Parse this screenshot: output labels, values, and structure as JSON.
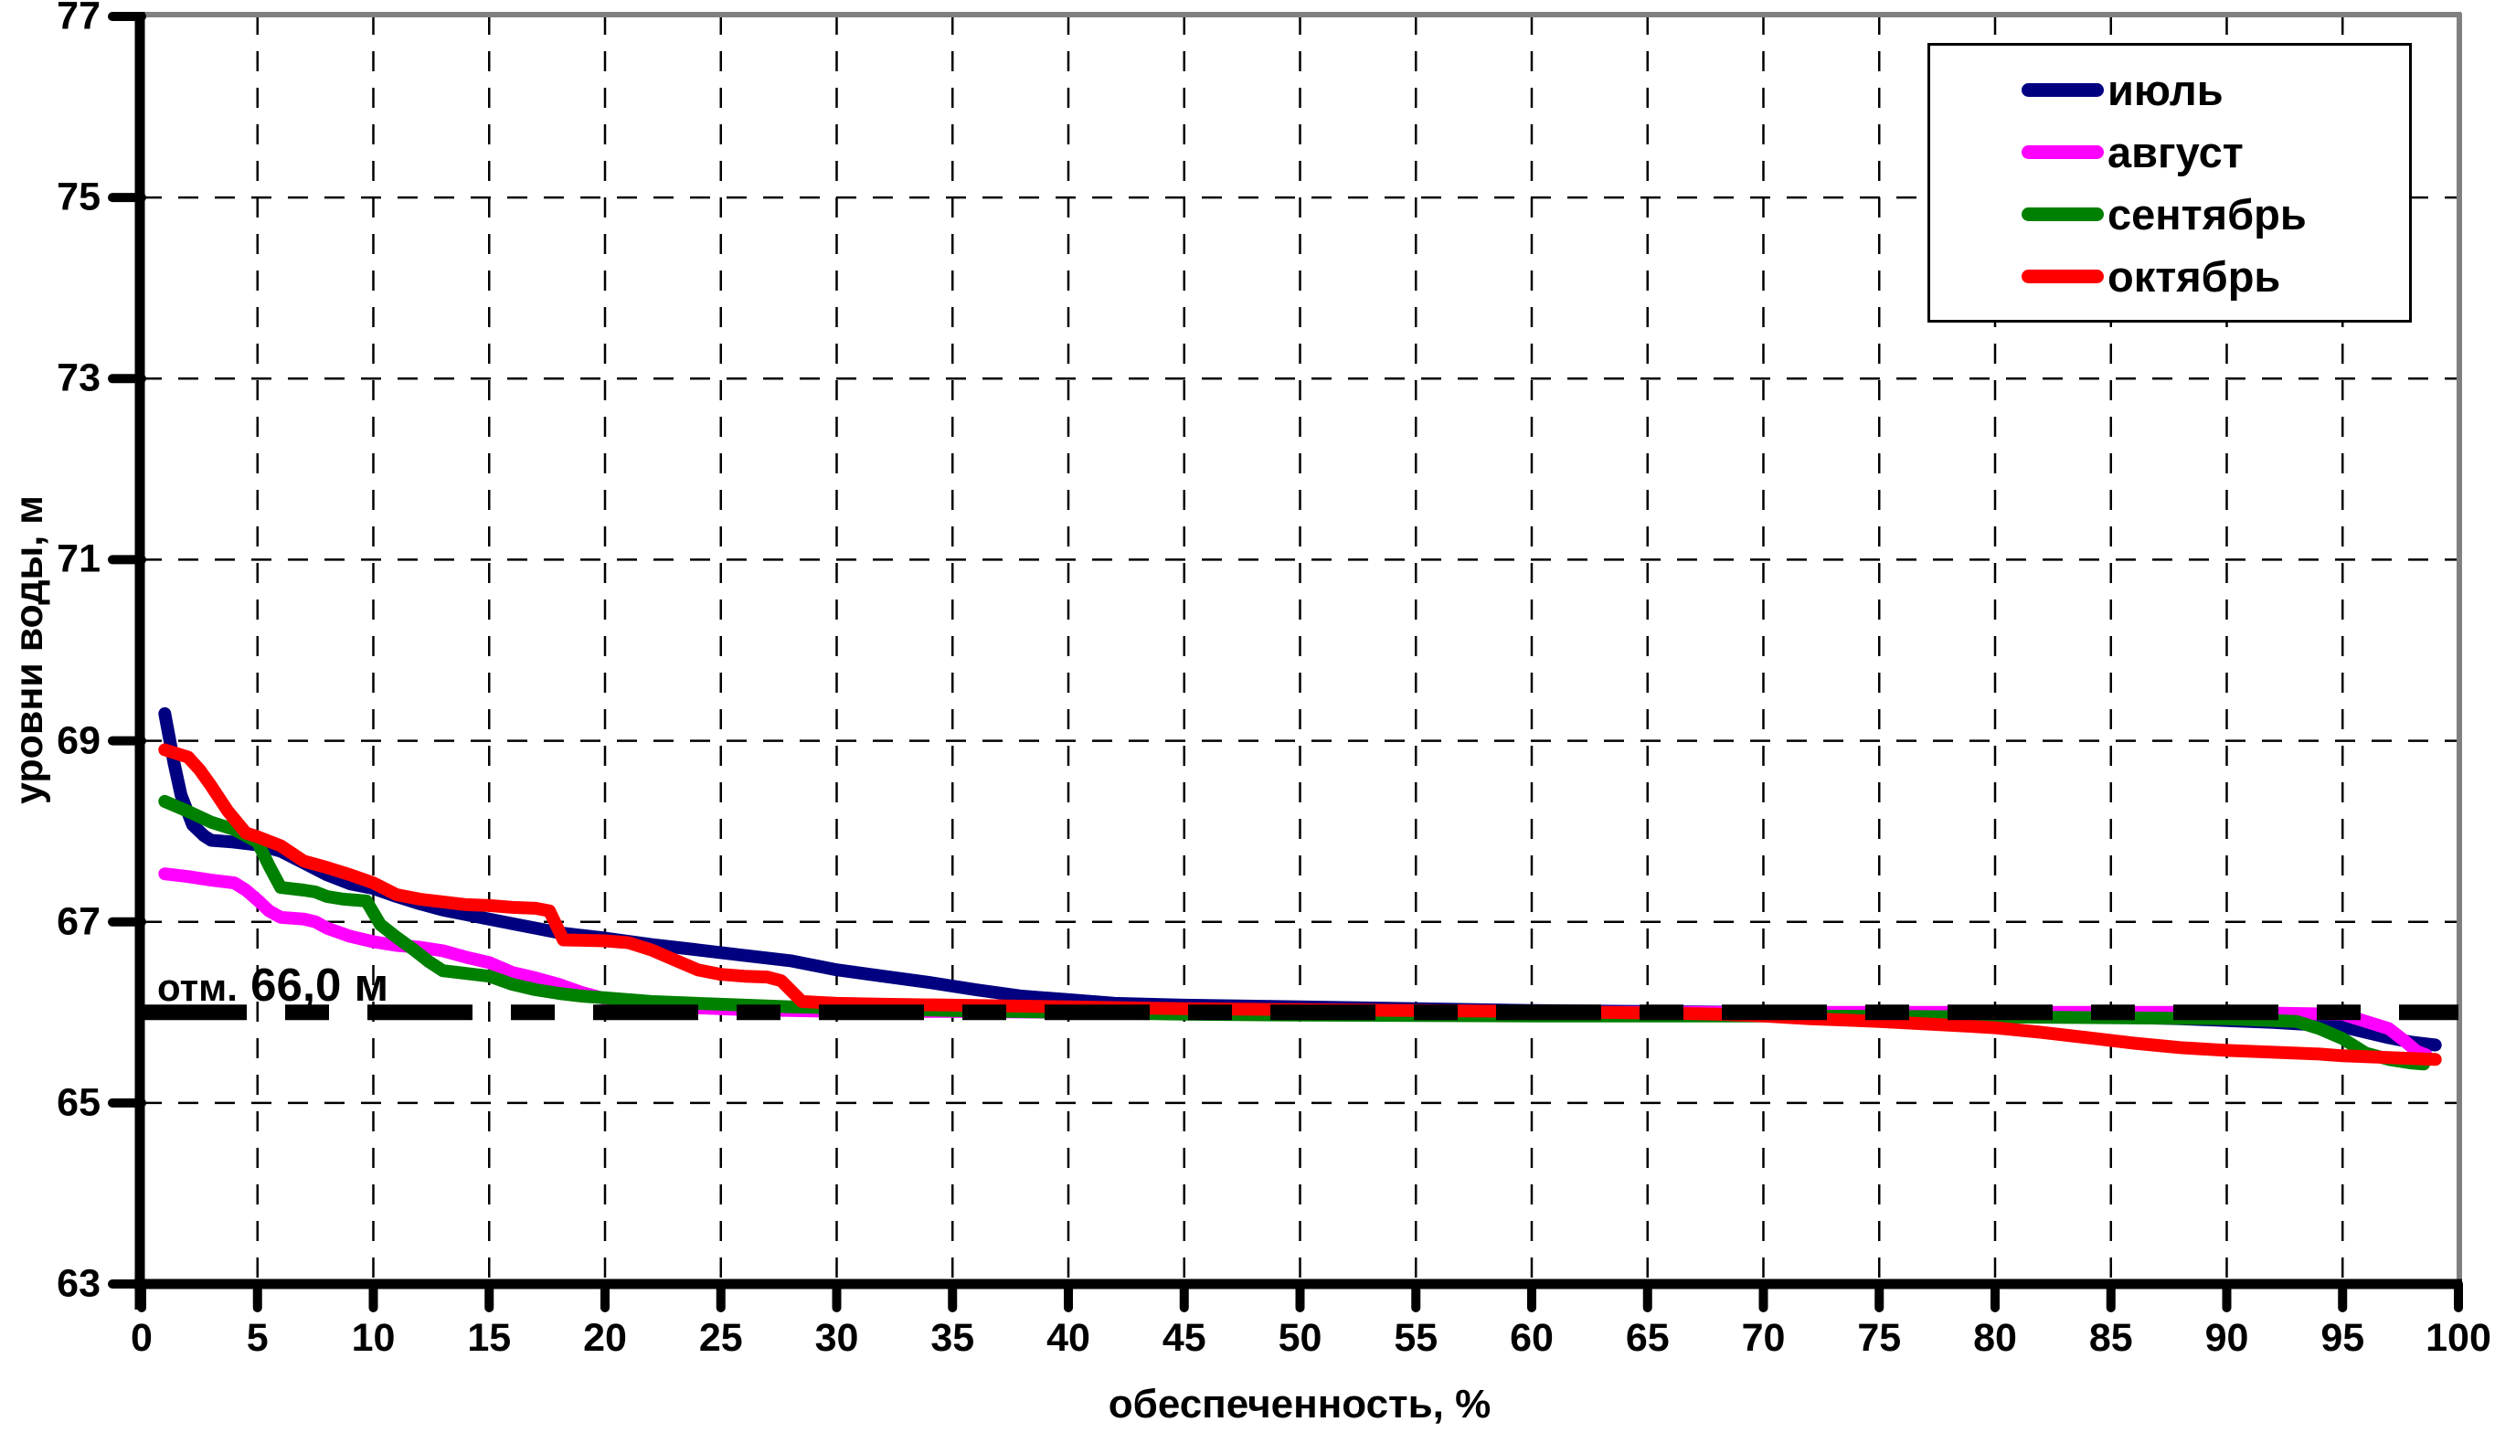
{
  "chart_data": {
    "type": "line",
    "title": "",
    "xlabel": "обеспеченность, %",
    "ylabel": "уровни воды, м",
    "xlim": [
      0,
      100
    ],
    "ylim": [
      63,
      77
    ],
    "x_tick_values": [
      0,
      5,
      10,
      15,
      20,
      25,
      30,
      35,
      40,
      45,
      50,
      55,
      60,
      65,
      70,
      75,
      80,
      85,
      90,
      95,
      100
    ],
    "y_tick_values": [
      77,
      75,
      73,
      71,
      69,
      67,
      65,
      63
    ],
    "x_gridlines": [
      5,
      10,
      15,
      20,
      25,
      30,
      35,
      40,
      45,
      50,
      55,
      60,
      65,
      70,
      75,
      80,
      85,
      90,
      95
    ],
    "y_gridlines": [
      75,
      73,
      71,
      69,
      67,
      65
    ],
    "grid_style": "dashed",
    "legend_position": "top-right",
    "series": [
      {
        "name": "июль",
        "color": "#000080",
        "points": [
          [
            1,
            69.3
          ],
          [
            1.4,
            68.75
          ],
          [
            1.7,
            68.4
          ],
          [
            2.2,
            68.07
          ],
          [
            2.7,
            67.95
          ],
          [
            3,
            67.9
          ],
          [
            4,
            67.88
          ],
          [
            5,
            67.85
          ],
          [
            6,
            67.78
          ],
          [
            7,
            67.65
          ],
          [
            8,
            67.52
          ],
          [
            9,
            67.42
          ],
          [
            10,
            67.37
          ],
          [
            11,
            67.28
          ],
          [
            12,
            67.2
          ],
          [
            13,
            67.13
          ],
          [
            14,
            67.08
          ],
          [
            15,
            67.03
          ],
          [
            16,
            66.98
          ],
          [
            17,
            66.93
          ],
          [
            18,
            66.88
          ],
          [
            19,
            66.85
          ],
          [
            20,
            66.82
          ],
          [
            22,
            66.75
          ],
          [
            24,
            66.69
          ],
          [
            26,
            66.63
          ],
          [
            28,
            66.57
          ],
          [
            30,
            66.47
          ],
          [
            32,
            66.4
          ],
          [
            34,
            66.33
          ],
          [
            36,
            66.25
          ],
          [
            38,
            66.18
          ],
          [
            40,
            66.14
          ],
          [
            42,
            66.1
          ],
          [
            45,
            66.08
          ],
          [
            50,
            66.06
          ],
          [
            55,
            66.04
          ],
          [
            60,
            66.02
          ],
          [
            65,
            66.01
          ],
          [
            70,
            66.0
          ],
          [
            75,
            65.99
          ],
          [
            80,
            65.97
          ],
          [
            85,
            65.95
          ],
          [
            88,
            65.93
          ],
          [
            90,
            65.91
          ],
          [
            92,
            65.89
          ],
          [
            94,
            65.86
          ],
          [
            95,
            65.84
          ],
          [
            96,
            65.78
          ],
          [
            97,
            65.72
          ],
          [
            98,
            65.67
          ],
          [
            99,
            65.64
          ]
        ]
      },
      {
        "name": "август",
        "color": "#FF00FF",
        "points": [
          [
            1,
            67.53
          ],
          [
            2,
            67.5
          ],
          [
            3,
            67.46
          ],
          [
            4,
            67.43
          ],
          [
            4.5,
            67.35
          ],
          [
            5,
            67.24
          ],
          [
            5.5,
            67.12
          ],
          [
            6,
            67.05
          ],
          [
            7,
            67.03
          ],
          [
            7.5,
            67.0
          ],
          [
            8,
            66.93
          ],
          [
            9,
            66.84
          ],
          [
            10,
            66.78
          ],
          [
            11,
            66.74
          ],
          [
            12,
            66.72
          ],
          [
            13,
            66.68
          ],
          [
            14,
            66.61
          ],
          [
            15,
            66.55
          ],
          [
            16,
            66.44
          ],
          [
            17,
            66.38
          ],
          [
            18,
            66.31
          ],
          [
            19,
            66.22
          ],
          [
            20,
            66.15
          ],
          [
            21,
            66.11
          ],
          [
            22,
            66.08
          ],
          [
            24,
            66.05
          ],
          [
            26,
            66.03
          ],
          [
            28,
            66.02
          ],
          [
            30,
            66.01
          ],
          [
            35,
            66.01
          ],
          [
            40,
            66.0
          ],
          [
            50,
            66.0
          ],
          [
            60,
            66.0
          ],
          [
            70,
            66.0
          ],
          [
            80,
            66.0
          ],
          [
            90,
            66.0
          ],
          [
            95,
            65.98
          ],
          [
            96,
            65.9
          ],
          [
            97,
            65.82
          ],
          [
            97.7,
            65.68
          ],
          [
            98.2,
            65.57
          ],
          [
            98.6,
            65.53
          ]
        ]
      },
      {
        "name": "сентябрь",
        "color": "#008000",
        "points": [
          [
            1,
            68.33
          ],
          [
            2,
            68.22
          ],
          [
            3,
            68.1
          ],
          [
            4,
            68.02
          ],
          [
            5,
            67.88
          ],
          [
            5.5,
            67.62
          ],
          [
            6,
            67.38
          ],
          [
            7,
            67.35
          ],
          [
            7.5,
            67.33
          ],
          [
            8,
            67.28
          ],
          [
            8.7,
            67.25
          ],
          [
            9.7,
            67.23
          ],
          [
            10.3,
            66.97
          ],
          [
            11,
            66.83
          ],
          [
            11.7,
            66.7
          ],
          [
            12.4,
            66.56
          ],
          [
            13,
            66.46
          ],
          [
            14,
            66.43
          ],
          [
            15,
            66.4
          ],
          [
            16,
            66.31
          ],
          [
            17,
            66.25
          ],
          [
            18,
            66.21
          ],
          [
            19,
            66.18
          ],
          [
            20,
            66.16
          ],
          [
            22,
            66.12
          ],
          [
            25,
            66.09
          ],
          [
            28,
            66.06
          ],
          [
            30,
            66.05
          ],
          [
            35,
            66.02
          ],
          [
            40,
            66.0
          ],
          [
            45,
            65.98
          ],
          [
            50,
            65.97
          ],
          [
            60,
            65.96
          ],
          [
            70,
            65.96
          ],
          [
            80,
            65.95
          ],
          [
            90,
            65.93
          ],
          [
            93,
            65.9
          ],
          [
            94,
            65.82
          ],
          [
            95,
            65.71
          ],
          [
            96,
            65.55
          ],
          [
            97,
            65.48
          ],
          [
            98,
            65.44
          ],
          [
            98.5,
            65.43
          ]
        ]
      },
      {
        "name": "октябрь",
        "color": "#FF0000",
        "points": [
          [
            1,
            68.9
          ],
          [
            2,
            68.82
          ],
          [
            2.5,
            68.68
          ],
          [
            3,
            68.5
          ],
          [
            3.7,
            68.23
          ],
          [
            4.5,
            67.98
          ],
          [
            5,
            67.94
          ],
          [
            6,
            67.84
          ],
          [
            7,
            67.67
          ],
          [
            8,
            67.6
          ],
          [
            9,
            67.52
          ],
          [
            10,
            67.43
          ],
          [
            11,
            67.3
          ],
          [
            12,
            67.25
          ],
          [
            13,
            67.22
          ],
          [
            14,
            67.19
          ],
          [
            15,
            67.18
          ],
          [
            16,
            67.16
          ],
          [
            17,
            67.15
          ],
          [
            17.6,
            67.12
          ],
          [
            18.2,
            66.8
          ],
          [
            20,
            66.79
          ],
          [
            21,
            66.77
          ],
          [
            22,
            66.69
          ],
          [
            23,
            66.58
          ],
          [
            24,
            66.47
          ],
          [
            25,
            66.42
          ],
          [
            26,
            66.4
          ],
          [
            27,
            66.39
          ],
          [
            27.6,
            66.35
          ],
          [
            28.5,
            66.12
          ],
          [
            30,
            66.1
          ],
          [
            32,
            66.09
          ],
          [
            35,
            66.08
          ],
          [
            40,
            66.06
          ],
          [
            45,
            66.04
          ],
          [
            50,
            66.03
          ],
          [
            55,
            66.02
          ],
          [
            60,
            66.01
          ],
          [
            63,
            66.0
          ],
          [
            66,
            65.99
          ],
          [
            68,
            65.98
          ],
          [
            70,
            65.96
          ],
          [
            72,
            65.93
          ],
          [
            75,
            65.9
          ],
          [
            78,
            65.86
          ],
          [
            80,
            65.83
          ],
          [
            82,
            65.78
          ],
          [
            84,
            65.72
          ],
          [
            86,
            65.66
          ],
          [
            88,
            65.61
          ],
          [
            90,
            65.58
          ],
          [
            92,
            65.56
          ],
          [
            94,
            65.54
          ],
          [
            95,
            65.52
          ],
          [
            96,
            65.51
          ],
          [
            97,
            65.5
          ],
          [
            98,
            65.49
          ],
          [
            99,
            65.48
          ]
        ]
      }
    ],
    "reference_line": {
      "value": 66.0,
      "label_prefix": "отм.",
      "label_value": " 66,0 м",
      "color": "#000000",
      "style": "thick-dash-dot"
    }
  },
  "colors": {
    "axis": "#000000",
    "frame_top_right": "#808080",
    "grid": "#000000",
    "background": "#FFFFFF"
  }
}
